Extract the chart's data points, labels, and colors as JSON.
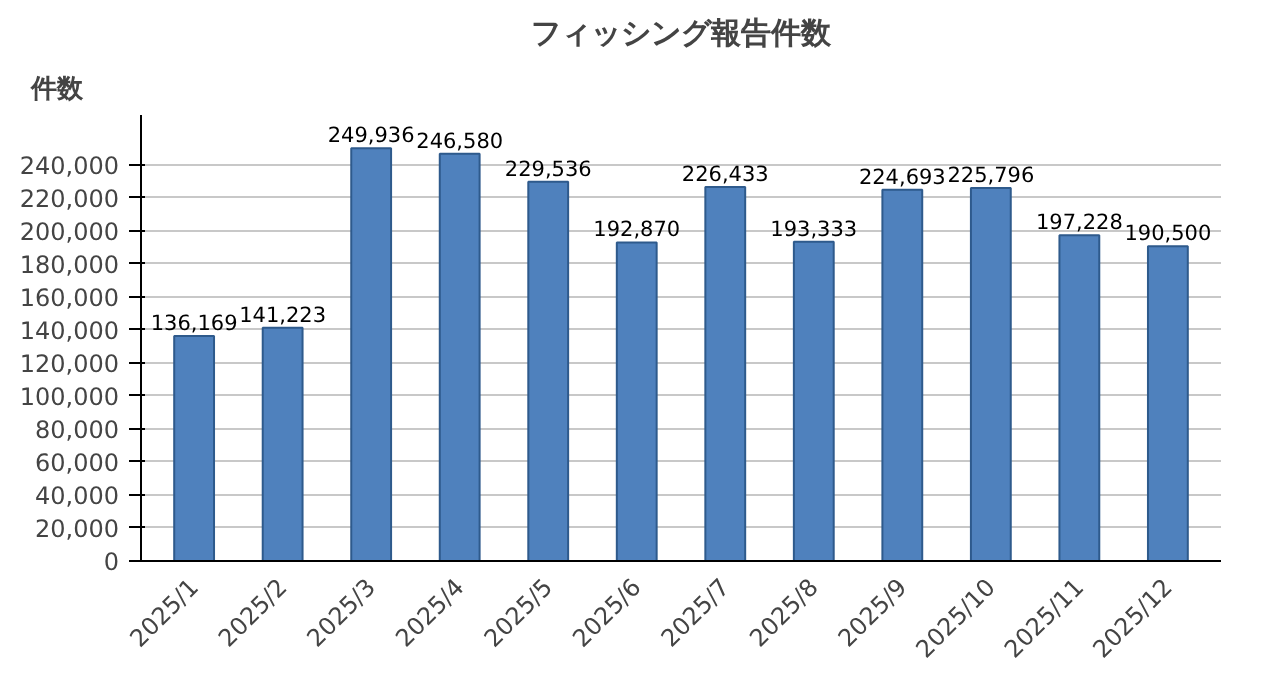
{
  "chart_data": {
    "type": "bar",
    "title": "フィッシング報告件数",
    "ylabel": "件数",
    "categories": [
      "2025/1",
      "2025/2",
      "2025/3",
      "2025/4",
      "2025/5",
      "2025/6",
      "2025/7",
      "2025/8",
      "2025/9",
      "2025/10",
      "2025/11",
      "2025/12"
    ],
    "values": [
      136169,
      141223,
      249936,
      246580,
      229536,
      192870,
      226433,
      193333,
      224693,
      225796,
      197228,
      190500
    ],
    "color": "#4f81bd",
    "value_labels": [
      "136,169",
      "141,223",
      "249,936",
      "246,580",
      "229,536",
      "192,870",
      "226,433",
      "193,333",
      "224,693",
      "225,796",
      "197,228",
      "190,500"
    ],
    "ylim": [
      0,
      270000
    ],
    "yticks": [
      0,
      {
        "value": 20000,
        "label": "20,000"
      },
      {
        "value": 40000,
        "label": "40,000"
      },
      {
        "value": 60000,
        "label": "60,000"
      },
      {
        "value": 80000,
        "label": "80,000"
      },
      {
        "value": 100000,
        "label": "100,000"
      },
      {
        "value": 120000,
        "label": "120,000"
      },
      {
        "value": 140000,
        "label": "140,000"
      },
      {
        "value": 160000,
        "label": "160,000"
      },
      {
        "value": 180000,
        "label": "180,000"
      },
      {
        "value": 200000,
        "label": "200,000"
      },
      {
        "value": 220000,
        "label": "220,000"
      },
      {
        "value": 240000,
        "label": "240,000"
      }
    ],
    "grid": "y"
  }
}
